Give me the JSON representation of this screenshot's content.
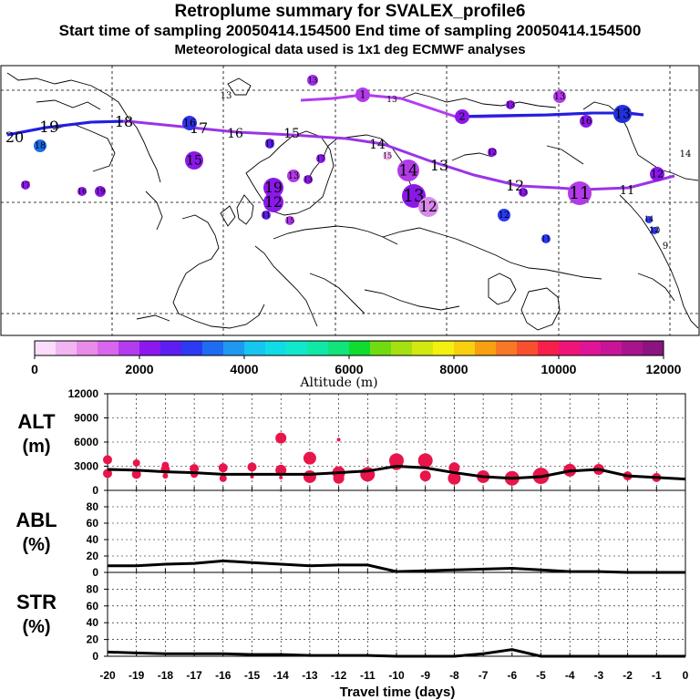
{
  "header": {
    "title": "Retroplume summary for SVALEX_profile6",
    "sampling": "Start time of sampling 20050414.154500      End time of sampling 20050414.154500",
    "met": "Meteorological data used is 1x1 deg ECMWF analyses"
  },
  "colors": {
    "plume_blue": "#2020e0",
    "plume_purple": "#9a34e8",
    "marker_red": "#e8154a",
    "line": "#000000"
  },
  "colorbar": {
    "ticks": [
      "0",
      "2000",
      "4000",
      "6000",
      "8000",
      "10000",
      "12000"
    ],
    "label": "Altitude (m)",
    "colors": [
      "#fbdcfb",
      "#f1b6f1",
      "#e98be9",
      "#d966ee",
      "#b33cf0",
      "#8c18f0",
      "#5c1ef2",
      "#2c3af4",
      "#1f6cf2",
      "#1f98f0",
      "#15c6f0",
      "#10dce6",
      "#10e8cc",
      "#10e8a6",
      "#10e47a",
      "#10dc30",
      "#70dc10",
      "#a6e010",
      "#d2e810",
      "#f4f010",
      "#f8d010",
      "#f8a010",
      "#f87828",
      "#f8502e",
      "#f8204a",
      "#f01478",
      "#e01498",
      "#c81498",
      "#a8148c",
      "#8c1480"
    ]
  },
  "map_labels": [
    {
      "text": "20",
      "color": "#000"
    },
    {
      "text": "19",
      "color": "#000"
    },
    {
      "text": "18",
      "color": "#000"
    },
    {
      "text": "17",
      "color": "#000"
    },
    {
      "text": "16",
      "color": "#000"
    },
    {
      "text": "15",
      "color": "#000"
    },
    {
      "text": "14",
      "color": "#000"
    },
    {
      "text": "13",
      "color": "#000"
    },
    {
      "text": "12",
      "color": "#000"
    },
    {
      "text": "11",
      "color": "#000"
    },
    {
      "text": "13",
      "color": "#000"
    },
    {
      "text": "12",
      "color": "#000"
    },
    {
      "text": "11",
      "color": "#000"
    },
    {
      "text": "10",
      "color": "#000"
    },
    {
      "text": "9",
      "color": "#000"
    },
    {
      "text": "13",
      "color": "#000"
    },
    {
      "text": "14",
      "color": "#000"
    }
  ],
  "map_circles": [
    {
      "text": "18",
      "color": "#1e6de8"
    },
    {
      "text": "17",
      "color": "#8a18e8"
    },
    {
      "text": "16",
      "color": "#8a18e8"
    },
    {
      "text": "19",
      "color": "#8a18e8"
    },
    {
      "text": "15",
      "color": "#8a18e8"
    },
    {
      "text": "16",
      "color": "#3030e8"
    },
    {
      "text": "17",
      "color": "#8a18e8"
    },
    {
      "text": "16",
      "color": "#3030e8"
    },
    {
      "text": "11",
      "color": "#5a1ee8"
    },
    {
      "text": "13",
      "color": "#a030e8"
    },
    {
      "text": "19",
      "color": "#8a18e8"
    },
    {
      "text": "12",
      "color": "#8a18e8"
    },
    {
      "text": "13",
      "color": "#b23ae8"
    },
    {
      "text": "11",
      "color": "#5a1ee8"
    },
    {
      "text": "15",
      "color": "#b23ae8"
    },
    {
      "text": "17",
      "color": "#8a18e8"
    },
    {
      "text": "13",
      "color": "#8a18e8"
    },
    {
      "text": "14",
      "color": "#b23ae8"
    },
    {
      "text": "13",
      "color": "#8a18e8"
    },
    {
      "text": "12",
      "color": "#d88ae8"
    },
    {
      "text": "15",
      "color": "#f1b6f1"
    },
    {
      "text": "12",
      "color": "#8a18e8"
    },
    {
      "text": "13",
      "color": "#8a18e8"
    },
    {
      "text": "12",
      "color": "#2c3af4"
    },
    {
      "text": "11",
      "color": "#b23ae8"
    },
    {
      "text": "12",
      "color": "#8a18e8"
    },
    {
      "text": "11",
      "color": "#2c3af4"
    },
    {
      "text": "14",
      "color": "#2c3af4"
    },
    {
      "text": "12",
      "color": "#2c3af4"
    },
    {
      "text": "13",
      "color": "#8a18e8"
    },
    {
      "text": "13",
      "color": "#b23ae8"
    },
    {
      "text": "16",
      "color": "#8a18e8"
    },
    {
      "text": "15",
      "color": "#000"
    },
    {
      "text": "13",
      "color": "#2030e0"
    },
    {
      "text": "2",
      "color": "#8a18e8"
    },
    {
      "text": "1",
      "color": "#b23ae8"
    },
    {
      "text": "13",
      "color": "#8a18e8"
    }
  ],
  "chart_data": [
    {
      "type": "line",
      "title": "ALT (m)",
      "ylabel": "ALT\n(m)",
      "ylim": [
        0,
        12000
      ],
      "yticks": [
        "0",
        "3000",
        "6000",
        "9000",
        "12000"
      ],
      "x": [
        -20,
        -19,
        -18,
        -17,
        -16,
        -15,
        -14,
        -13,
        -12,
        -11,
        -10,
        -9,
        -8,
        -7,
        -6,
        -5,
        -4,
        -3,
        -2,
        -1,
        0
      ],
      "values": [
        2600,
        2500,
        2300,
        2200,
        2000,
        2000,
        2000,
        2000,
        2200,
        2400,
        3000,
        2800,
        2200,
        1700,
        1500,
        1700,
        2400,
        2600,
        1800,
        1600,
        1400
      ],
      "scatter": [
        {
          "x": -20,
          "y": 3800
        },
        {
          "x": -20,
          "y": 2100
        },
        {
          "x": -19,
          "y": 3400
        },
        {
          "x": -19,
          "y": 2000
        },
        {
          "x": -18,
          "y": 3100
        },
        {
          "x": -18,
          "y": 2600
        },
        {
          "x": -18,
          "y": 1800
        },
        {
          "x": -17,
          "y": 2700
        },
        {
          "x": -17,
          "y": 2000
        },
        {
          "x": -16,
          "y": 2800
        },
        {
          "x": -16,
          "y": 1500
        },
        {
          "x": -15,
          "y": 2900
        },
        {
          "x": -15,
          "y": 1700
        },
        {
          "x": -14,
          "y": 6500
        },
        {
          "x": -14,
          "y": 2500
        },
        {
          "x": -14,
          "y": 1600
        },
        {
          "x": -13,
          "y": 4000
        },
        {
          "x": -13,
          "y": 1700
        },
        {
          "x": -12,
          "y": 6300
        },
        {
          "x": -12,
          "y": 2200
        },
        {
          "x": -12,
          "y": 1500
        },
        {
          "x": -11,
          "y": 3700
        },
        {
          "x": -11,
          "y": 2000
        },
        {
          "x": -10,
          "y": 3700
        },
        {
          "x": -10,
          "y": 3300
        },
        {
          "x": -9,
          "y": 3700
        },
        {
          "x": -9,
          "y": 1800
        },
        {
          "x": -8,
          "y": 2800
        },
        {
          "x": -8,
          "y": 1500
        },
        {
          "x": -7,
          "y": 1700
        },
        {
          "x": -6,
          "y": 1500
        },
        {
          "x": -5,
          "y": 1800
        },
        {
          "x": -4,
          "y": 2500
        },
        {
          "x": -3,
          "y": 2600
        },
        {
          "x": -2,
          "y": 1800
        },
        {
          "x": -1,
          "y": 1600
        }
      ]
    },
    {
      "type": "line",
      "title": "ABL (%)",
      "ylabel": "ABL\n(%)",
      "ylim": [
        0,
        100
      ],
      "yticks": [
        "0",
        "20",
        "40",
        "60",
        "80"
      ],
      "x": [
        -20,
        -19,
        -18,
        -17,
        -16,
        -15,
        -14,
        -13,
        -12,
        -11,
        -10,
        -9,
        -8,
        -7,
        -6,
        -5,
        -4,
        -3,
        -2,
        -1,
        0
      ],
      "values": [
        8,
        8,
        10,
        11,
        14,
        12,
        10,
        8,
        9,
        9,
        1,
        2,
        3,
        4,
        5,
        3,
        1,
        1,
        0,
        0,
        0
      ]
    },
    {
      "type": "line",
      "title": "STR (%)",
      "ylabel": "STR\n(%)",
      "ylim": [
        0,
        100
      ],
      "yticks": [
        "0",
        "20",
        "40",
        "60",
        "80"
      ],
      "x": [
        -20,
        -19,
        -18,
        -17,
        -16,
        -15,
        -14,
        -13,
        -12,
        -11,
        -10,
        -9,
        -8,
        -7,
        -6,
        -5,
        -4,
        -3,
        -2,
        -1,
        0
      ],
      "values": [
        5,
        4,
        3,
        3,
        3,
        2,
        2,
        1,
        1,
        1,
        0,
        0,
        0,
        3,
        8,
        0,
        0,
        0,
        0,
        0,
        0
      ]
    }
  ],
  "xaxis": {
    "ticks": [
      "-20",
      "-19",
      "-18",
      "-17",
      "-16",
      "-15",
      "-14",
      "-13",
      "-12",
      "-11",
      "-10",
      "-9",
      "-8",
      "-7",
      "-6",
      "-5",
      "-4",
      "-3",
      "-2",
      "-1",
      "0"
    ],
    "label": "Travel time (days)"
  },
  "panels": {
    "alt": {
      "label1": "ALT",
      "label2": "(m)"
    },
    "abl": {
      "label1": "ABL",
      "label2": "(%)"
    },
    "str": {
      "label1": "STR",
      "label2": "(%)"
    }
  }
}
